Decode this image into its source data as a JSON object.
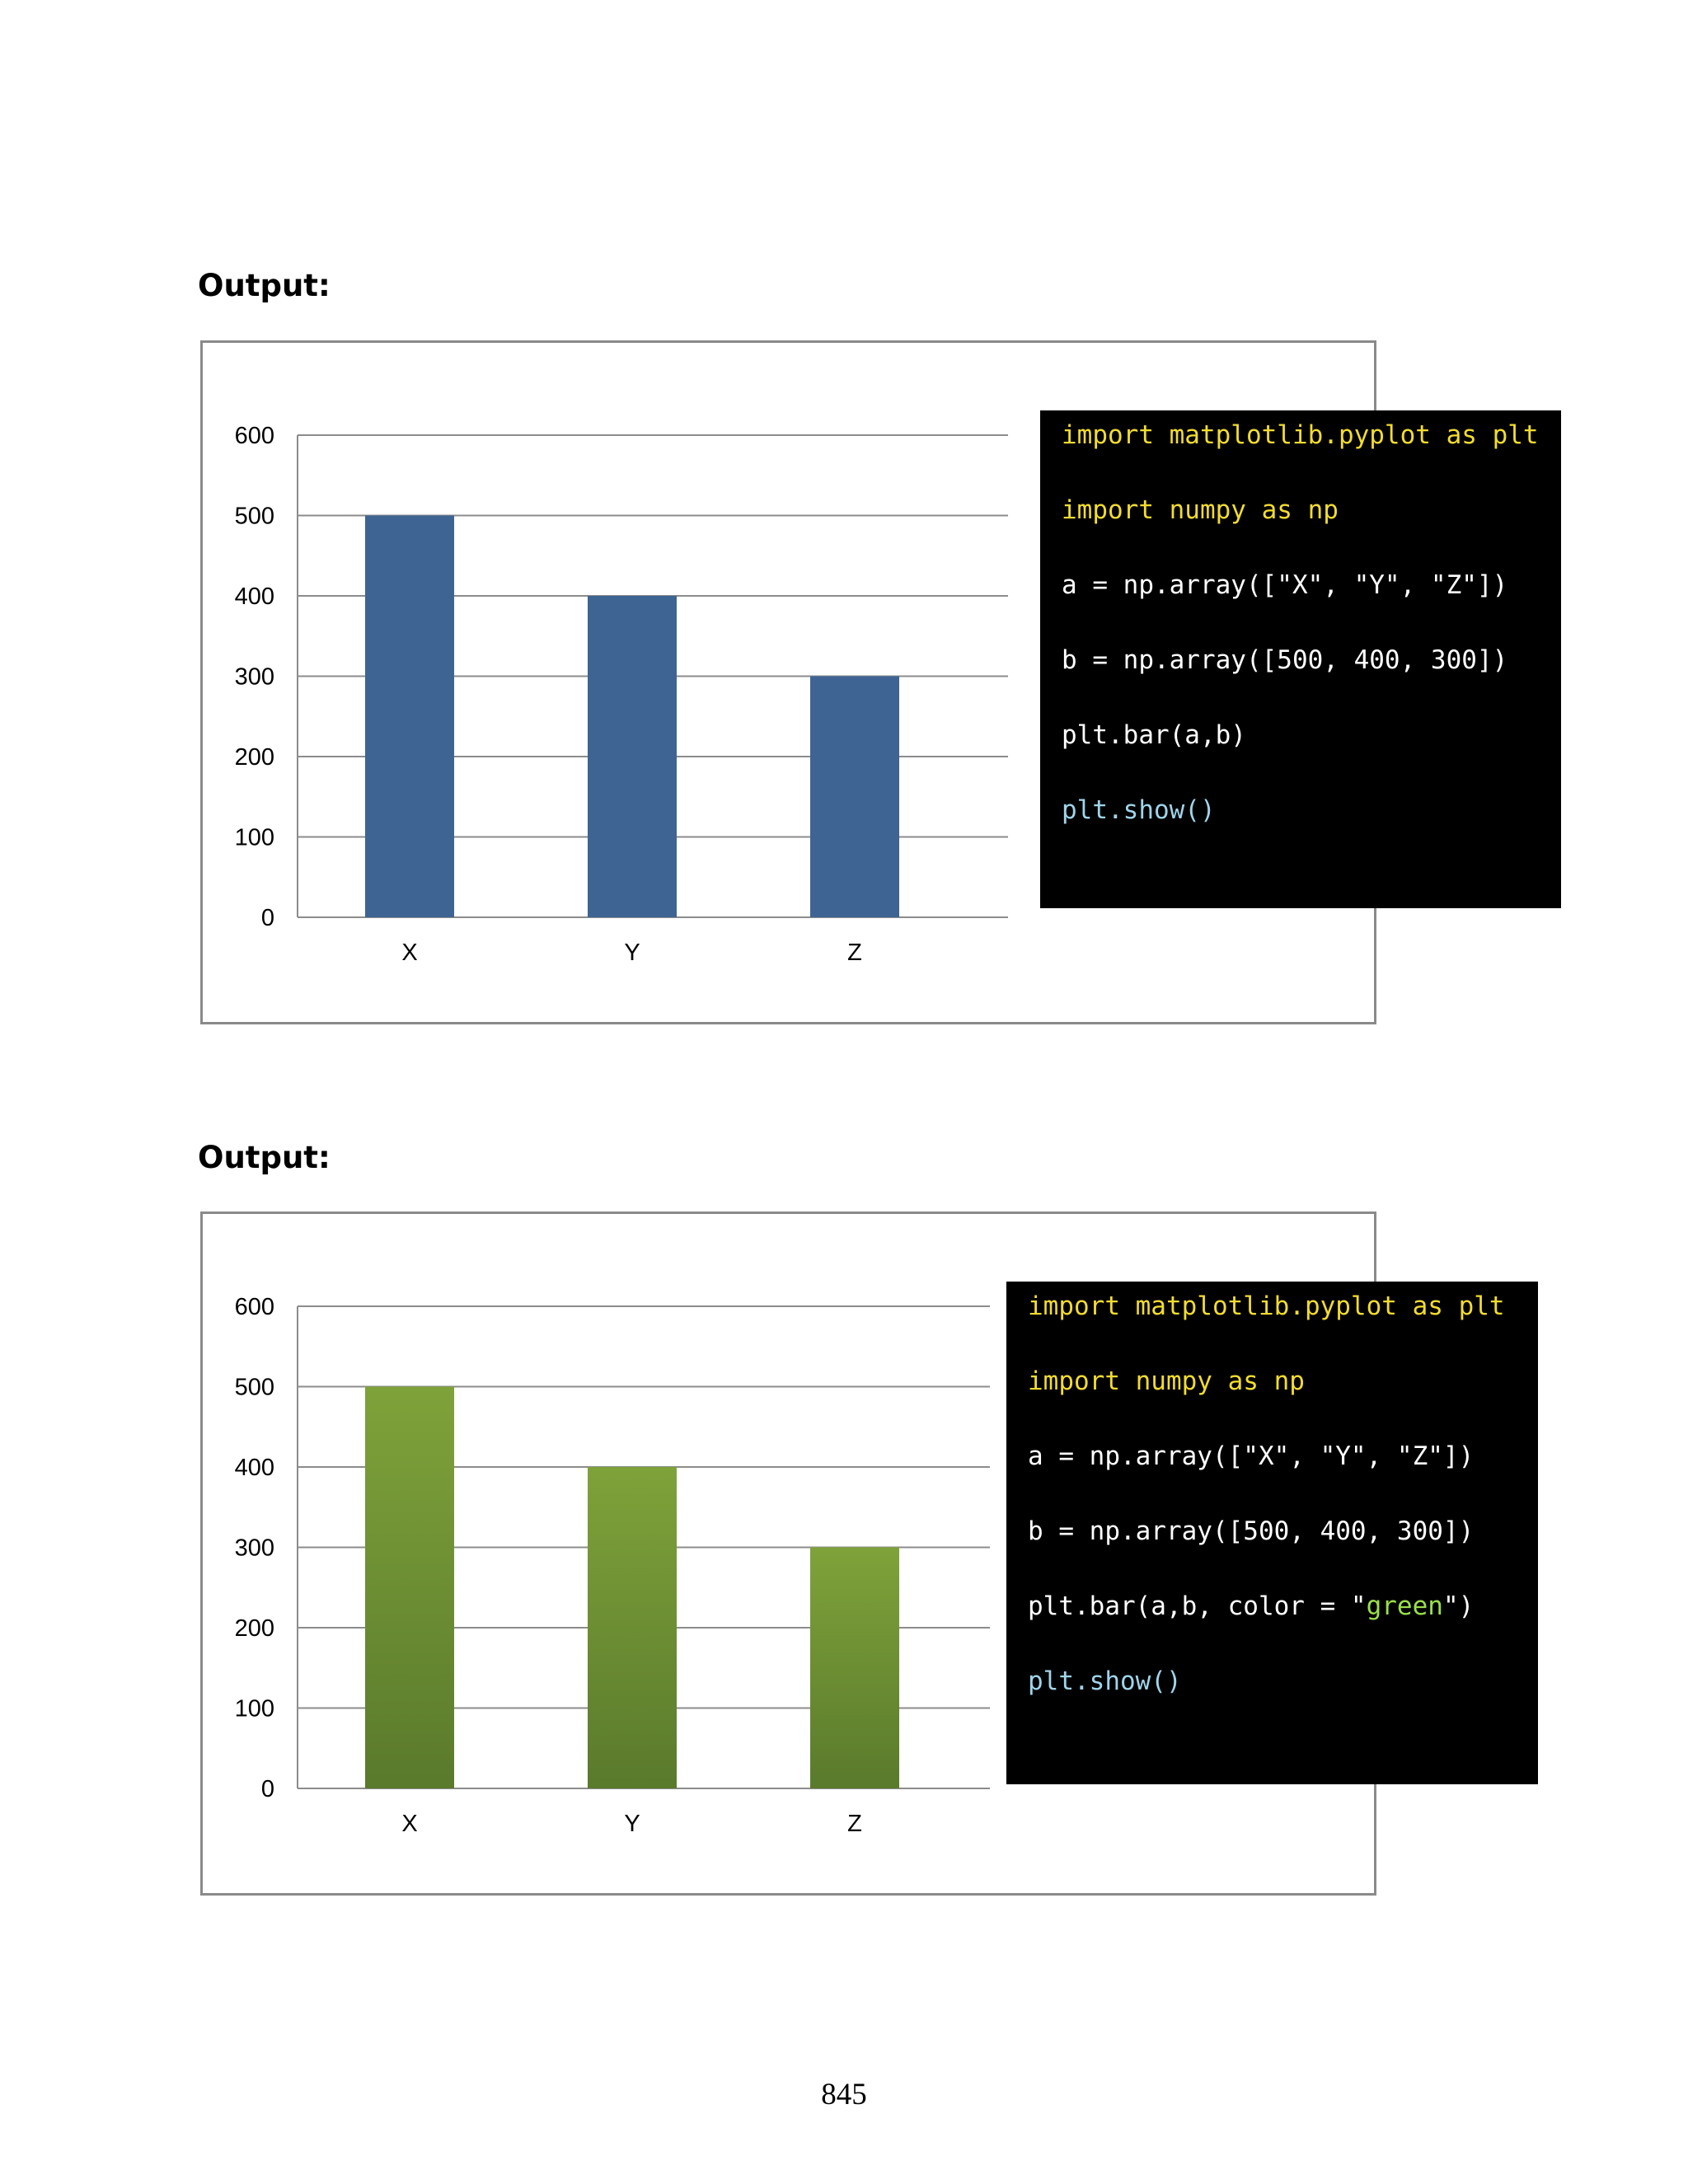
{
  "sections": [
    {
      "heading": "Output:",
      "code": {
        "line1": "import matplotlib.pyplot as plt",
        "line2": "import numpy as np",
        "line3": "a = np.array([\"X\", \"Y\", \"Z\"])",
        "line4": "b = np.array([500, 400, 300])",
        "line5": "plt.bar(a,b)",
        "line6": "plt.show()"
      }
    },
    {
      "heading": "Output:",
      "code": {
        "line1": "import matplotlib.pyplot as plt",
        "line2": "import numpy as np",
        "line3": "a = np.array([\"X\", \"Y\", \"Z\"])",
        "line4": "b = np.array([500, 400, 300])",
        "line5_prefix": "plt.bar(a,b, color = \"",
        "line5_string": "green",
        "line5_suffix": "\")",
        "line6": "plt.show()"
      }
    }
  ],
  "chart_data": [
    {
      "type": "bar",
      "categories": [
        "X",
        "Y",
        "Z"
      ],
      "values": [
        500,
        400,
        300
      ],
      "ylim": [
        0,
        600
      ],
      "yticks": [
        0,
        100,
        200,
        300,
        400,
        500,
        600
      ],
      "grid": true,
      "legend": "none",
      "bar_color": "#3d6493"
    },
    {
      "type": "bar",
      "categories": [
        "X",
        "Y",
        "Z"
      ],
      "values": [
        500,
        400,
        300
      ],
      "ylim": [
        0,
        600
      ],
      "yticks": [
        0,
        100,
        200,
        300,
        400,
        500,
        600
      ],
      "grid": true,
      "legend": "none",
      "bar_color_top": "#7fa23a",
      "bar_color_bottom": "#5a7a2c"
    }
  ],
  "page_number": "845"
}
